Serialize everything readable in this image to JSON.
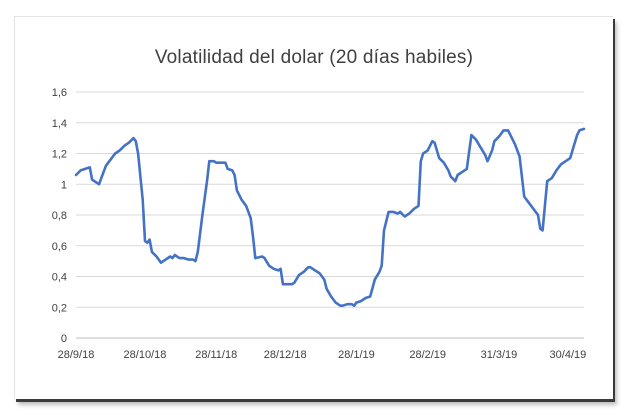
{
  "chart_data": {
    "type": "line",
    "title": "Volatilidad del dolar (20 días habiles)",
    "xlabel": "",
    "ylabel": "",
    "ylim": [
      0,
      1.6
    ],
    "yticks": [
      "0",
      "0,2",
      "0,4",
      "0,6",
      "0,8",
      "1",
      "1,2",
      "1,4",
      "1,6"
    ],
    "ytick_values": [
      0,
      0.2,
      0.4,
      0.6,
      0.8,
      1.0,
      1.2,
      1.4,
      1.6
    ],
    "xlim": [
      "2018-09-28",
      "2019-05-07"
    ],
    "xticks": [
      "28/9/18",
      "28/10/18",
      "28/11/18",
      "28/12/18",
      "28/1/19",
      "28/2/19",
      "31/3/19",
      "30/4/19"
    ],
    "xtick_dates": [
      "2018-09-28",
      "2018-10-28",
      "2018-11-28",
      "2018-12-28",
      "2019-01-28",
      "2019-02-28",
      "2019-03-31",
      "2019-04-30"
    ],
    "grid": true,
    "legend": "none",
    "series": [
      {
        "color": "#4472C4",
        "points": [
          [
            "2018-09-28",
            1.06
          ],
          [
            "2018-09-30",
            1.09
          ],
          [
            "2018-10-02",
            1.1
          ],
          [
            "2018-10-04",
            1.11
          ],
          [
            "2018-10-05",
            1.03
          ],
          [
            "2018-10-07",
            1.01
          ],
          [
            "2018-10-08",
            1.0
          ],
          [
            "2018-10-09",
            1.04
          ],
          [
            "2018-10-11",
            1.12
          ],
          [
            "2018-10-13",
            1.16
          ],
          [
            "2018-10-15",
            1.2
          ],
          [
            "2018-10-17",
            1.22
          ],
          [
            "2018-10-19",
            1.25
          ],
          [
            "2018-10-21",
            1.27
          ],
          [
            "2018-10-23",
            1.3
          ],
          [
            "2018-10-24",
            1.28
          ],
          [
            "2018-10-25",
            1.2
          ],
          [
            "2018-10-27",
            0.9
          ],
          [
            "2018-10-28",
            0.63
          ],
          [
            "2018-10-29",
            0.62
          ],
          [
            "2018-10-30",
            0.64
          ],
          [
            "2018-10-31",
            0.56
          ],
          [
            "2018-11-02",
            0.53
          ],
          [
            "2018-11-04",
            0.49
          ],
          [
            "2018-11-06",
            0.51
          ],
          [
            "2018-11-08",
            0.53
          ],
          [
            "2018-11-09",
            0.52
          ],
          [
            "2018-11-10",
            0.54
          ],
          [
            "2018-11-12",
            0.52
          ],
          [
            "2018-11-14",
            0.52
          ],
          [
            "2018-11-16",
            0.51
          ],
          [
            "2018-11-18",
            0.51
          ],
          [
            "2018-11-19",
            0.5
          ],
          [
            "2018-11-20",
            0.56
          ],
          [
            "2018-11-22",
            0.8
          ],
          [
            "2018-11-24",
            1.02
          ],
          [
            "2018-11-25",
            1.15
          ],
          [
            "2018-11-27",
            1.15
          ],
          [
            "2018-11-28",
            1.14
          ],
          [
            "2018-11-30",
            1.14
          ],
          [
            "2018-12-02",
            1.14
          ],
          [
            "2018-12-03",
            1.1
          ],
          [
            "2018-12-05",
            1.09
          ],
          [
            "2018-12-06",
            1.06
          ],
          [
            "2018-12-07",
            0.96
          ],
          [
            "2018-12-09",
            0.9
          ],
          [
            "2018-12-11",
            0.86
          ],
          [
            "2018-12-13",
            0.78
          ],
          [
            "2018-12-14",
            0.66
          ],
          [
            "2018-12-15",
            0.52
          ],
          [
            "2018-12-18",
            0.53
          ],
          [
            "2018-12-19",
            0.52
          ],
          [
            "2018-12-21",
            0.47
          ],
          [
            "2018-12-23",
            0.45
          ],
          [
            "2018-12-25",
            0.44
          ],
          [
            "2018-12-26",
            0.45
          ],
          [
            "2018-12-27",
            0.35
          ],
          [
            "2018-12-31",
            0.35
          ],
          [
            "2019-01-01",
            0.36
          ],
          [
            "2019-01-03",
            0.41
          ],
          [
            "2019-01-05",
            0.43
          ],
          [
            "2019-01-07",
            0.46
          ],
          [
            "2019-01-08",
            0.46
          ],
          [
            "2019-01-10",
            0.44
          ],
          [
            "2019-01-12",
            0.42
          ],
          [
            "2019-01-14",
            0.38
          ],
          [
            "2019-01-15",
            0.32
          ],
          [
            "2019-01-17",
            0.27
          ],
          [
            "2019-01-19",
            0.23
          ],
          [
            "2019-01-21",
            0.21
          ],
          [
            "2019-01-22",
            0.21
          ],
          [
            "2019-01-24",
            0.22
          ],
          [
            "2019-01-26",
            0.22
          ],
          [
            "2019-01-27",
            0.21
          ],
          [
            "2019-01-28",
            0.23
          ],
          [
            "2019-01-30",
            0.24
          ],
          [
            "2019-02-01",
            0.26
          ],
          [
            "2019-02-03",
            0.27
          ],
          [
            "2019-02-05",
            0.38
          ],
          [
            "2019-02-07",
            0.43
          ],
          [
            "2019-02-08",
            0.47
          ],
          [
            "2019-02-09",
            0.7
          ],
          [
            "2019-02-11",
            0.82
          ],
          [
            "2019-02-13",
            0.82
          ],
          [
            "2019-02-15",
            0.81
          ],
          [
            "2019-02-16",
            0.82
          ],
          [
            "2019-02-18",
            0.79
          ],
          [
            "2019-02-20",
            0.81
          ],
          [
            "2019-02-22",
            0.84
          ],
          [
            "2019-02-24",
            0.86
          ],
          [
            "2019-02-25",
            1.15
          ],
          [
            "2019-02-26",
            1.2
          ],
          [
            "2019-02-28",
            1.22
          ],
          [
            "2019-03-02",
            1.28
          ],
          [
            "2019-03-03",
            1.27
          ],
          [
            "2019-03-05",
            1.17
          ],
          [
            "2019-03-07",
            1.14
          ],
          [
            "2019-03-09",
            1.09
          ],
          [
            "2019-03-10",
            1.05
          ],
          [
            "2019-03-12",
            1.02
          ],
          [
            "2019-03-13",
            1.06
          ],
          [
            "2019-03-14",
            1.07
          ],
          [
            "2019-03-17",
            1.1
          ],
          [
            "2019-03-19",
            1.32
          ],
          [
            "2019-03-21",
            1.29
          ],
          [
            "2019-03-23",
            1.24
          ],
          [
            "2019-03-25",
            1.19
          ],
          [
            "2019-03-26",
            1.15
          ],
          [
            "2019-03-28",
            1.22
          ],
          [
            "2019-03-29",
            1.28
          ],
          [
            "2019-03-31",
            1.31
          ],
          [
            "2019-04-02",
            1.35
          ],
          [
            "2019-04-04",
            1.35
          ],
          [
            "2019-04-05",
            1.32
          ],
          [
            "2019-04-07",
            1.26
          ],
          [
            "2019-04-09",
            1.18
          ],
          [
            "2019-04-11",
            0.92
          ],
          [
            "2019-04-13",
            0.88
          ],
          [
            "2019-04-15",
            0.84
          ],
          [
            "2019-04-17",
            0.8
          ],
          [
            "2019-04-18",
            0.71
          ],
          [
            "2019-04-19",
            0.7
          ],
          [
            "2019-04-21",
            1.02
          ],
          [
            "2019-04-23",
            1.04
          ],
          [
            "2019-04-25",
            1.09
          ],
          [
            "2019-04-27",
            1.13
          ],
          [
            "2019-04-29",
            1.15
          ],
          [
            "2019-05-01",
            1.17
          ],
          [
            "2019-05-02",
            1.22
          ],
          [
            "2019-05-04",
            1.32
          ],
          [
            "2019-05-05",
            1.35
          ],
          [
            "2019-05-07",
            1.36
          ]
        ]
      }
    ]
  }
}
